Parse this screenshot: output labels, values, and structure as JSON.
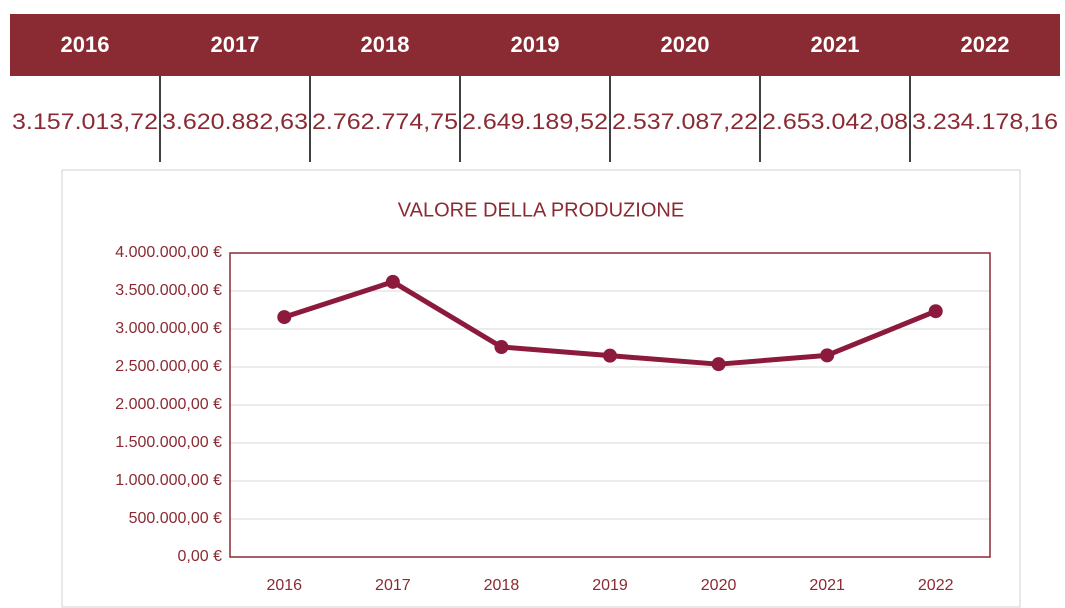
{
  "table": {
    "headers": [
      "2016",
      "2017",
      "2018",
      "2019",
      "2020",
      "2021",
      "2022"
    ],
    "rows": [
      [
        "3.157.013,72",
        "3.620.882,63",
        "2.762.774,75",
        "2.649.189,52",
        "2.537.087,22",
        "2.653.042,08",
        "3.234.178,16"
      ]
    ]
  },
  "chart_data": {
    "type": "line",
    "title": "VALORE DELLA PRODUZIONE",
    "categories": [
      "2016",
      "2017",
      "2018",
      "2019",
      "2020",
      "2021",
      "2022"
    ],
    "series": [
      {
        "color": "#8b1a3c",
        "values": [
          3157013.72,
          3620882.63,
          2762774.75,
          2649189.52,
          2537087.22,
          2653042.08,
          3234178.16
        ]
      }
    ],
    "ylim": [
      0,
      4000000
    ],
    "yticks": [
      {
        "value": 0,
        "label": "0,00 €"
      },
      {
        "value": 500000,
        "label": "500.000,00 €"
      },
      {
        "value": 1000000,
        "label": "1.000.000,00 €"
      },
      {
        "value": 1500000,
        "label": "1.500.000,00 €"
      },
      {
        "value": 2000000,
        "label": "2.000.000,00 €"
      },
      {
        "value": 2500000,
        "label": "2.500.000,00 €"
      },
      {
        "value": 3000000,
        "label": "3.000.000,00 €"
      },
      {
        "value": 3500000,
        "label": "3.500.000,00 €"
      },
      {
        "value": 4000000,
        "label": "4.000.000,00 €"
      }
    ],
    "grid": true
  }
}
